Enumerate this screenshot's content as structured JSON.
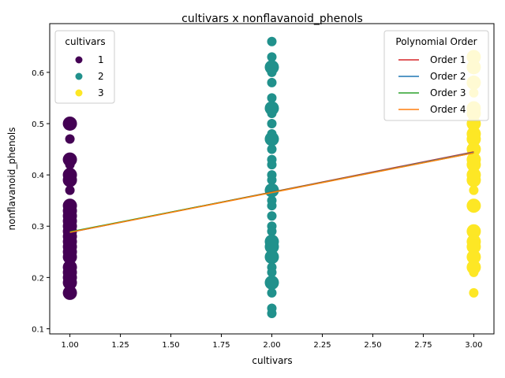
{
  "chart_data": {
    "type": "scatter",
    "title": "cultivars x nonflavanoid_phenols",
    "xlabel": "cultivars",
    "ylabel": "nonflavanoid_phenols",
    "xlim": [
      0.9,
      3.1
    ],
    "ylim": [
      0.09,
      0.695
    ],
    "xticks": [
      1.0,
      1.25,
      1.5,
      1.75,
      2.0,
      2.25,
      2.5,
      2.75,
      3.0
    ],
    "xtick_labels": [
      "1.00",
      "1.25",
      "1.50",
      "1.75",
      "2.00",
      "2.25",
      "2.50",
      "2.75",
      "3.00"
    ],
    "yticks": [
      0.1,
      0.2,
      0.3,
      0.4,
      0.5,
      0.6
    ],
    "ytick_labels": [
      "0.1",
      "0.2",
      "0.3",
      "0.4",
      "0.5",
      "0.6"
    ],
    "grid": false,
    "series": [
      {
        "name": "1",
        "color": "#440154",
        "x": 1,
        "points": [
          {
            "y": 0.5,
            "size": "large"
          },
          {
            "y": 0.47,
            "size": "small"
          },
          {
            "y": 0.43,
            "size": "large"
          },
          {
            "y": 0.42,
            "size": "small"
          },
          {
            "y": 0.4,
            "size": "large"
          },
          {
            "y": 0.39,
            "size": "large"
          },
          {
            "y": 0.37,
            "size": "small"
          },
          {
            "y": 0.34,
            "size": "large"
          },
          {
            "y": 0.33,
            "size": "large"
          },
          {
            "y": 0.32,
            "size": "large"
          },
          {
            "y": 0.31,
            "size": "large"
          },
          {
            "y": 0.3,
            "size": "large"
          },
          {
            "y": 0.29,
            "size": "large"
          },
          {
            "y": 0.28,
            "size": "large"
          },
          {
            "y": 0.27,
            "size": "large"
          },
          {
            "y": 0.26,
            "size": "large"
          },
          {
            "y": 0.25,
            "size": "large"
          },
          {
            "y": 0.24,
            "size": "large"
          },
          {
            "y": 0.22,
            "size": "large"
          },
          {
            "y": 0.21,
            "size": "large"
          },
          {
            "y": 0.2,
            "size": "large"
          },
          {
            "y": 0.19,
            "size": "large"
          },
          {
            "y": 0.17,
            "size": "large"
          }
        ]
      },
      {
        "name": "2",
        "color": "#21918c",
        "x": 2,
        "points": [
          {
            "y": 0.66,
            "size": "small"
          },
          {
            "y": 0.63,
            "size": "small"
          },
          {
            "y": 0.61,
            "size": "large"
          },
          {
            "y": 0.6,
            "size": "small"
          },
          {
            "y": 0.58,
            "size": "small"
          },
          {
            "y": 0.55,
            "size": "small"
          },
          {
            "y": 0.53,
            "size": "large"
          },
          {
            "y": 0.52,
            "size": "small"
          },
          {
            "y": 0.5,
            "size": "small"
          },
          {
            "y": 0.48,
            "size": "small"
          },
          {
            "y": 0.47,
            "size": "large"
          },
          {
            "y": 0.45,
            "size": "small"
          },
          {
            "y": 0.43,
            "size": "small"
          },
          {
            "y": 0.42,
            "size": "small"
          },
          {
            "y": 0.4,
            "size": "small"
          },
          {
            "y": 0.39,
            "size": "small"
          },
          {
            "y": 0.37,
            "size": "large"
          },
          {
            "y": 0.35,
            "size": "small"
          },
          {
            "y": 0.34,
            "size": "small"
          },
          {
            "y": 0.32,
            "size": "small"
          },
          {
            "y": 0.3,
            "size": "small"
          },
          {
            "y": 0.29,
            "size": "small"
          },
          {
            "y": 0.27,
            "size": "large"
          },
          {
            "y": 0.26,
            "size": "large"
          },
          {
            "y": 0.24,
            "size": "large"
          },
          {
            "y": 0.22,
            "size": "small"
          },
          {
            "y": 0.21,
            "size": "small"
          },
          {
            "y": 0.19,
            "size": "large"
          },
          {
            "y": 0.17,
            "size": "small"
          },
          {
            "y": 0.14,
            "size": "small"
          },
          {
            "y": 0.13,
            "size": "small"
          }
        ]
      },
      {
        "name": "3",
        "color": "#fde725",
        "x": 3,
        "points": [
          {
            "y": 0.63,
            "size": "large"
          },
          {
            "y": 0.61,
            "size": "large"
          },
          {
            "y": 0.58,
            "size": "large"
          },
          {
            "y": 0.56,
            "size": "small"
          },
          {
            "y": 0.53,
            "size": "large"
          },
          {
            "y": 0.52,
            "size": "large"
          },
          {
            "y": 0.5,
            "size": "large"
          },
          {
            "y": 0.48,
            "size": "large"
          },
          {
            "y": 0.47,
            "size": "large"
          },
          {
            "y": 0.45,
            "size": "large"
          },
          {
            "y": 0.43,
            "size": "large"
          },
          {
            "y": 0.42,
            "size": "large"
          },
          {
            "y": 0.4,
            "size": "large"
          },
          {
            "y": 0.39,
            "size": "large"
          },
          {
            "y": 0.37,
            "size": "small"
          },
          {
            "y": 0.34,
            "size": "large"
          },
          {
            "y": 0.29,
            "size": "large"
          },
          {
            "y": 0.27,
            "size": "large"
          },
          {
            "y": 0.26,
            "size": "large"
          },
          {
            "y": 0.24,
            "size": "large"
          },
          {
            "y": 0.22,
            "size": "large"
          },
          {
            "y": 0.21,
            "size": "small"
          },
          {
            "y": 0.17,
            "size": "small"
          }
        ]
      }
    ],
    "fit_lines": [
      {
        "name": "Order 1",
        "color": "#d62728",
        "x": [
          1.0,
          3.0
        ],
        "y": [
          0.288,
          0.445
        ]
      },
      {
        "name": "Order 2",
        "color": "#1f77b4",
        "x": [
          1.0,
          3.0
        ],
        "y": [
          0.288,
          0.444
        ]
      },
      {
        "name": "Order 3",
        "color": "#2ca02c",
        "x": [
          1.0,
          3.0
        ],
        "y": [
          0.289,
          0.443
        ]
      },
      {
        "name": "Order 4",
        "color": "#ff7f0e",
        "x": [
          1.0,
          3.0
        ],
        "y": [
          0.288,
          0.443
        ]
      }
    ],
    "legend_scatter": {
      "title": "cultivars",
      "position": "upper-left"
    },
    "legend_lines": {
      "title": "Polynomial Order",
      "position": "upper-right"
    }
  }
}
